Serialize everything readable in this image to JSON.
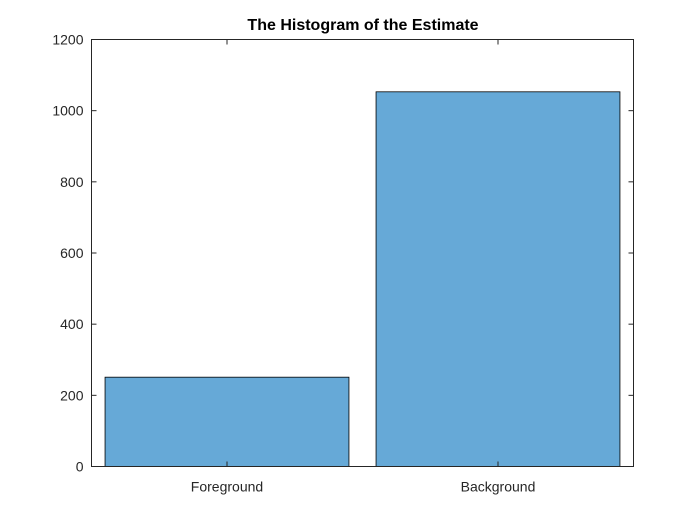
{
  "chart_data": {
    "type": "bar",
    "title": "The Histogram of the Estimate",
    "xlabel": "",
    "ylabel": "",
    "categories": [
      "Foreground",
      "Background"
    ],
    "values": [
      251,
      1053
    ],
    "ylim": [
      0,
      1200
    ],
    "yticks": [
      0,
      200,
      400,
      600,
      800,
      1000,
      1200
    ],
    "ytick_labels": [
      "0",
      "200",
      "400",
      "600",
      "800",
      "1000",
      "1200"
    ],
    "bar_color": "#66a9d7",
    "grid": false,
    "legend": "none"
  }
}
